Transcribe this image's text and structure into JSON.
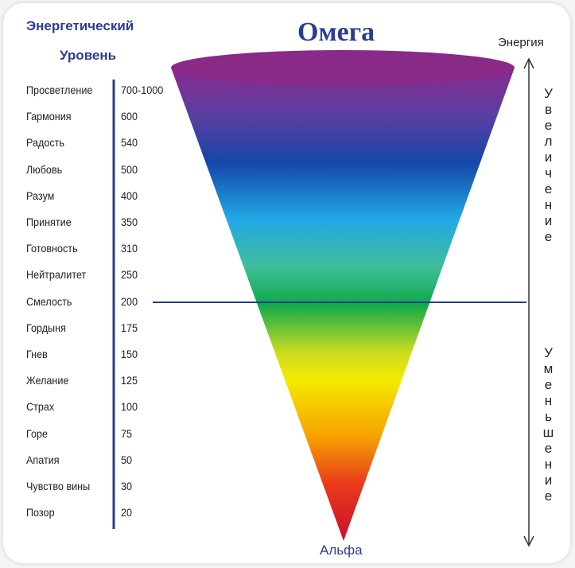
{
  "header": {
    "title_lines": [
      "Энергетический",
      "Уровень"
    ]
  },
  "levels": [
    {
      "name": "Просветление",
      "value": "700-1000"
    },
    {
      "name": "Гармония",
      "value": 600
    },
    {
      "name": "Радость",
      "value": 540
    },
    {
      "name": "Любовь",
      "value": 500
    },
    {
      "name": "Разум",
      "value": 400
    },
    {
      "name": "Принятие",
      "value": 350
    },
    {
      "name": "Готовность",
      "value": 310
    },
    {
      "name": "Нейтралитет",
      "value": 250
    },
    {
      "name": "Смелость",
      "value": 200
    },
    {
      "name": "Гордыня",
      "value": 175
    },
    {
      "name": "Гнев",
      "value": 150
    },
    {
      "name": "Желание",
      "value": 125
    },
    {
      "name": "Страх",
      "value": 100
    },
    {
      "name": "Горе",
      "value": 75
    },
    {
      "name": "Апатия",
      "value": 50
    },
    {
      "name": "Чувство вины",
      "value": 30
    },
    {
      "name": "Позор",
      "value": 20
    }
  ],
  "cone": {
    "top_label": "Омега",
    "bottom_label": "Альфа"
  },
  "axis": {
    "label": "Энергия",
    "up_label": "Увеличение",
    "down_label": "Уменьшение"
  }
}
